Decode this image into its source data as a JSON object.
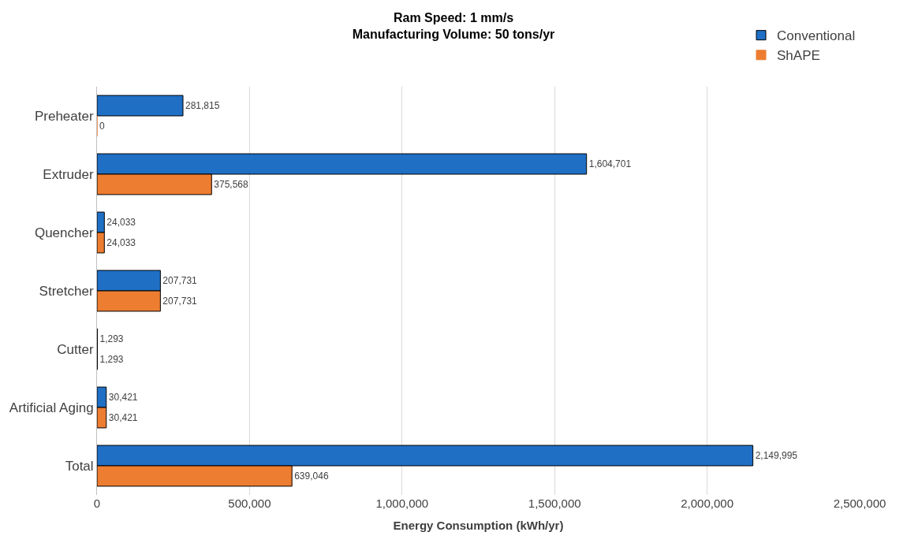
{
  "chart_data": {
    "type": "bar",
    "orientation": "horizontal",
    "title": "Ram Speed: 1 mm/s\nManufacturing Volume: 50 tons/yr",
    "xlabel": "Energy Consumption (kWh/yr)",
    "categories": [
      "Preheater",
      "Extruder",
      "Quencher",
      "Stretcher",
      "Cutter",
      "Artificial Aging",
      "Total"
    ],
    "series": [
      {
        "name": "Conventional",
        "color": "#1f6fc5",
        "values": [
          281815,
          1604701,
          24033,
          207731,
          1293,
          30421,
          2149995
        ],
        "value_labels": [
          "281,815",
          "1,604,701",
          "24,033",
          "207,731",
          "1,293",
          "30,421",
          "2,149,995"
        ]
      },
      {
        "name": "ShAPE",
        "color": "#ed7d31",
        "values": [
          0,
          375568,
          24033,
          207731,
          1293,
          30421,
          639046
        ],
        "value_labels": [
          "0",
          "375,568",
          "24,033",
          "207,731",
          "1,293",
          "30,421",
          "639,046"
        ]
      }
    ],
    "xlim": [
      0,
      2500000
    ],
    "xticks": [
      {
        "value": 0,
        "label": "0"
      },
      {
        "value": 500000,
        "label": "500,000"
      },
      {
        "value": 1000000,
        "label": "1,000,000"
      },
      {
        "value": 1500000,
        "label": "1,500,000"
      },
      {
        "value": 2000000,
        "label": "2,000,000"
      },
      {
        "value": 2500000,
        "label": "2,500,000"
      }
    ],
    "grid": "x",
    "legend": "top right"
  }
}
